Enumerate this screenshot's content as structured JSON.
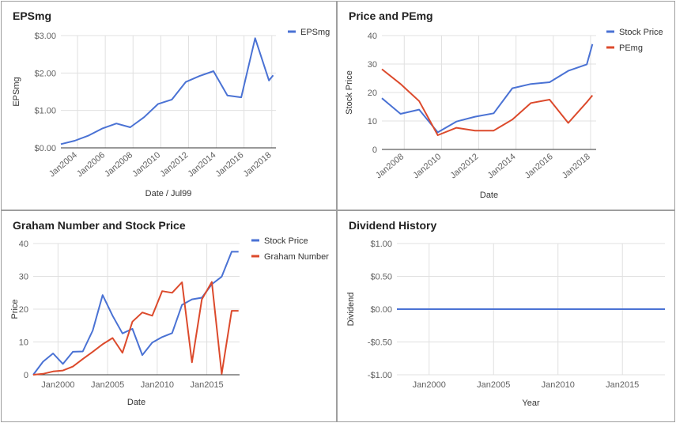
{
  "colors": {
    "blue": "#4a72d4",
    "red": "#dc4a2c",
    "grid": "#e0e0e0",
    "axis": "#333333",
    "text": "#616161"
  },
  "chart_data": [
    {
      "title": "EPSmg",
      "type": "line",
      "xlabel": "Date / Jul99",
      "ylabel": "EPSmg",
      "xlim": [
        2002.8,
        2018.3
      ],
      "ylim": [
        0,
        3
      ],
      "x_ticks": [
        2004,
        2006,
        2008,
        2010,
        2012,
        2014,
        2016,
        2018
      ],
      "x_tick_labels": [
        "Jan2004",
        "Jan2006",
        "Jan2008",
        "Jan2010",
        "Jan2012",
        "Jan2014",
        "Jan2016",
        "Jan2018"
      ],
      "y_ticks": [
        0,
        1,
        2,
        3
      ],
      "y_tick_labels": [
        "$0.00",
        "$1.00",
        "$2.00",
        "$3.00"
      ],
      "grid": true,
      "legend": "right",
      "series": [
        {
          "name": "EPSmg",
          "color": "blue",
          "x": [
            2002.8,
            2003.8,
            2004.8,
            2005.8,
            2006.8,
            2007.8,
            2008.8,
            2009.8,
            2010.8,
            2011.8,
            2012.8,
            2013.8,
            2014.8,
            2015.8,
            2016.8,
            2017.8,
            2018.1
          ],
          "y": [
            0.1,
            0.19,
            0.33,
            0.52,
            0.65,
            0.55,
            0.82,
            1.17,
            1.29,
            1.76,
            1.92,
            2.05,
            1.4,
            1.35,
            2.93,
            1.8,
            1.94
          ]
        }
      ]
    },
    {
      "title": "Price and PEmg",
      "type": "line",
      "xlabel": "Date",
      "ylabel": "Stock Price",
      "xlim": [
        2006.8,
        2018.3
      ],
      "ylim": [
        0,
        40
      ],
      "x_ticks": [
        2008,
        2010,
        2012,
        2014,
        2016,
        2018
      ],
      "x_tick_labels": [
        "Jan2008",
        "Jan2010",
        "Jan2012",
        "Jan2014",
        "Jan2016",
        "Jan2018"
      ],
      "y_ticks": [
        0,
        10,
        20,
        30,
        40
      ],
      "y_tick_labels": [
        "0",
        "10",
        "20",
        "30",
        "40"
      ],
      "grid": true,
      "legend": "right",
      "series": [
        {
          "name": "Stock Price",
          "color": "blue",
          "x": [
            2006.8,
            2007.8,
            2008.8,
            2009.8,
            2010.8,
            2011.8,
            2012.8,
            2013.8,
            2014.8,
            2015.8,
            2016.8,
            2017.8,
            2018.1
          ],
          "y": [
            18.0,
            12.5,
            14.0,
            6.0,
            9.8,
            11.5,
            12.7,
            21.5,
            23.0,
            23.6,
            27.6,
            29.9,
            37.0
          ]
        },
        {
          "name": "PEmg",
          "color": "red",
          "x": [
            2006.8,
            2007.8,
            2008.8,
            2009.8,
            2010.8,
            2011.8,
            2012.8,
            2013.8,
            2014.8,
            2015.8,
            2016.8,
            2017.8,
            2018.1
          ],
          "y": [
            28.2,
            23.0,
            17.0,
            5.0,
            7.6,
            6.6,
            6.6,
            10.5,
            16.3,
            17.5,
            9.3,
            16.6,
            19.0
          ]
        }
      ]
    },
    {
      "title": "Graham Number and Stock Price",
      "type": "line",
      "xlabel": "Date",
      "ylabel": "Price",
      "xlim": [
        1997.5,
        2018.3
      ],
      "ylim": [
        0,
        40
      ],
      "x_ticks": [
        2000,
        2005,
        2010,
        2015
      ],
      "x_tick_labels": [
        "Jan2000",
        "Jan2005",
        "Jan2010",
        "Jan2015"
      ],
      "y_ticks": [
        0,
        10,
        20,
        30,
        40
      ],
      "y_tick_labels": [
        "0",
        "10",
        "20",
        "30",
        "40"
      ],
      "grid": true,
      "legend": "right",
      "series": [
        {
          "name": "Stock Price",
          "color": "blue",
          "x": [
            1997.5,
            1998.5,
            1999.5,
            2000.5,
            2001.5,
            2002.5,
            2003.5,
            2004.5,
            2005.5,
            2006.5,
            2007.5,
            2008.5,
            2009.5,
            2010.5,
            2011.5,
            2012.5,
            2013.5,
            2014.5,
            2015.5,
            2016.5,
            2017.5,
            2018.2
          ],
          "y": [
            0.0,
            4.0,
            6.5,
            3.3,
            7.0,
            7.1,
            13.5,
            24.3,
            18.0,
            12.6,
            14.0,
            6.0,
            9.8,
            11.5,
            12.7,
            21.3,
            23.0,
            23.5,
            27.6,
            29.9,
            37.5,
            37.5
          ]
        },
        {
          "name": "Graham Number",
          "color": "red",
          "x": [
            1997.5,
            1998.5,
            1999.5,
            2000.5,
            2001.5,
            2002.5,
            2003.5,
            2004.5,
            2005.5,
            2006.5,
            2007.5,
            2008.5,
            2009.5,
            2010.5,
            2011.5,
            2012.5,
            2013.5,
            2014.5,
            2015.5,
            2016.5,
            2017.5,
            2018.2
          ],
          "y": [
            0.0,
            0.3,
            1.0,
            1.3,
            2.5,
            4.8,
            7.0,
            9.3,
            11.2,
            6.7,
            16.2,
            19.0,
            18.0,
            25.5,
            25.0,
            28.2,
            3.8,
            23.0,
            28.3,
            0.3,
            19.5,
            19.5
          ]
        }
      ]
    },
    {
      "title": "Dividend History",
      "type": "line",
      "xlabel": "Year",
      "ylabel": "Dividend",
      "xlim": [
        1997.5,
        2018.3
      ],
      "ylim": [
        -1,
        1
      ],
      "x_ticks": [
        2000,
        2005,
        2010,
        2015
      ],
      "x_tick_labels": [
        "Jan2000",
        "Jan2005",
        "Jan2010",
        "Jan2015"
      ],
      "y_ticks": [
        -1,
        -0.5,
        0,
        0.5,
        1
      ],
      "y_tick_labels": [
        "-$1.00",
        "-$0.50",
        "$0.00",
        "$0.50",
        "$1.00"
      ],
      "grid": true,
      "legend": "none",
      "series": [
        {
          "color": "blue",
          "x": [
            1997.5,
            2018.3
          ],
          "y": [
            0,
            0
          ]
        }
      ]
    }
  ]
}
